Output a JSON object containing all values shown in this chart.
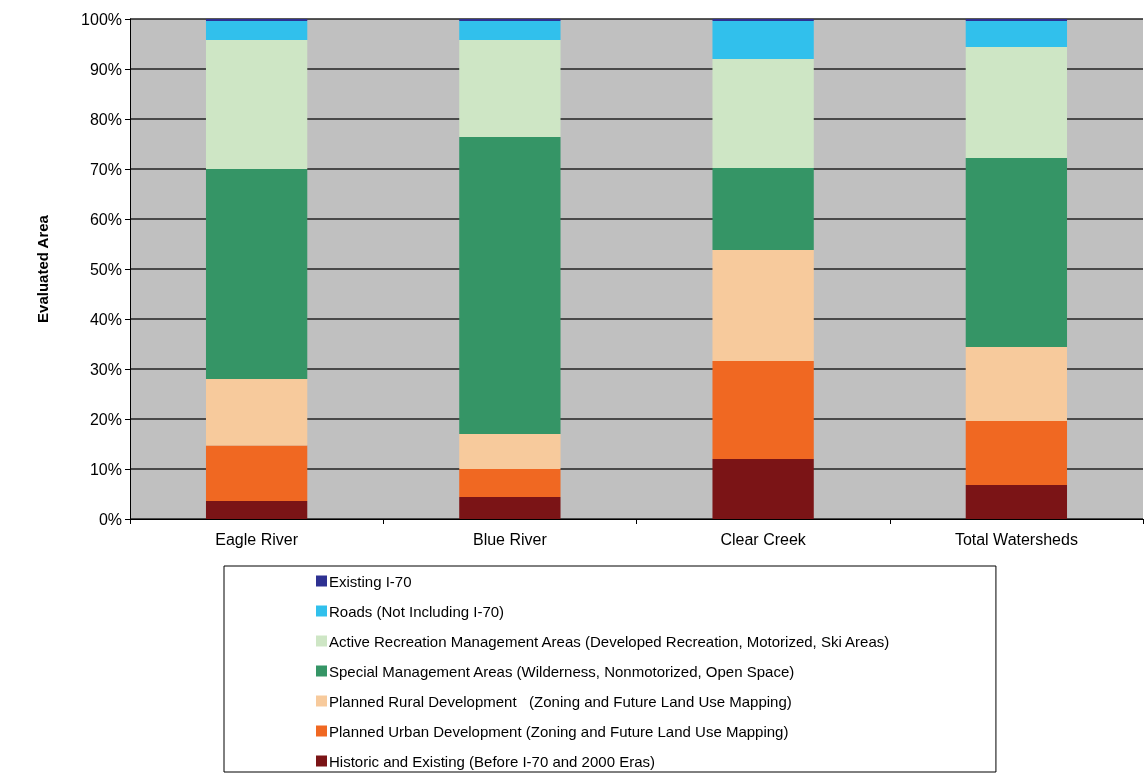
{
  "chart_data": {
    "type": "bar",
    "stacked": true,
    "ylabel": "Evaluated Area",
    "categories": [
      "Eagle River",
      "Blue River",
      "Clear Creek",
      "Total Watersheds"
    ],
    "series": [
      {
        "name": "Historic and Existing (Before I-70 and 2000 Eras)",
        "color": "#7b1416",
        "values": [
          3.6,
          4.4,
          12.0,
          6.8
        ]
      },
      {
        "name": "Planned Urban Development (Zoning and Future Land Use Mapping)",
        "color": "#f06822",
        "values": [
          11.1,
          5.6,
          19.6,
          12.8
        ]
      },
      {
        "name": "Planned Rural Development   (Zoning and Future Land Use Mapping)",
        "color": "#f7ca9c",
        "values": [
          13.3,
          7.0,
          22.2,
          14.8
        ]
      },
      {
        "name": "Special Management Areas (Wilderness, Nonmotorized, Open Space)",
        "color": "#359566",
        "values": [
          42.0,
          59.4,
          16.4,
          37.8
        ]
      },
      {
        "name": "Active Recreation Management Areas (Developed Recreation, Motorized, Ski Areas)",
        "color": "#cee6c5",
        "values": [
          25.8,
          19.4,
          21.8,
          22.2
        ]
      },
      {
        "name": "Roads (Not Including I-70)",
        "color": "#31c0ec",
        "values": [
          3.8,
          3.8,
          7.6,
          5.2
        ]
      },
      {
        "name": "Existing I-70",
        "color": "#2e3192",
        "values": [
          0.4,
          0.4,
          0.4,
          0.4
        ]
      }
    ],
    "ylim": [
      0,
      100
    ],
    "yticks": [
      {
        "value": 0,
        "label": "0%"
      },
      {
        "value": 10,
        "label": "10%"
      },
      {
        "value": 20,
        "label": "20%"
      },
      {
        "value": 30,
        "label": "30%"
      },
      {
        "value": 40,
        "label": "40%"
      },
      {
        "value": 50,
        "label": "50%"
      },
      {
        "value": 60,
        "label": "60%"
      },
      {
        "value": 70,
        "label": "70%"
      },
      {
        "value": 80,
        "label": "80%"
      },
      {
        "value": 90,
        "label": "90%"
      },
      {
        "value": 100,
        "label": "100%"
      }
    ],
    "grid": "y",
    "legend": "bottom"
  }
}
